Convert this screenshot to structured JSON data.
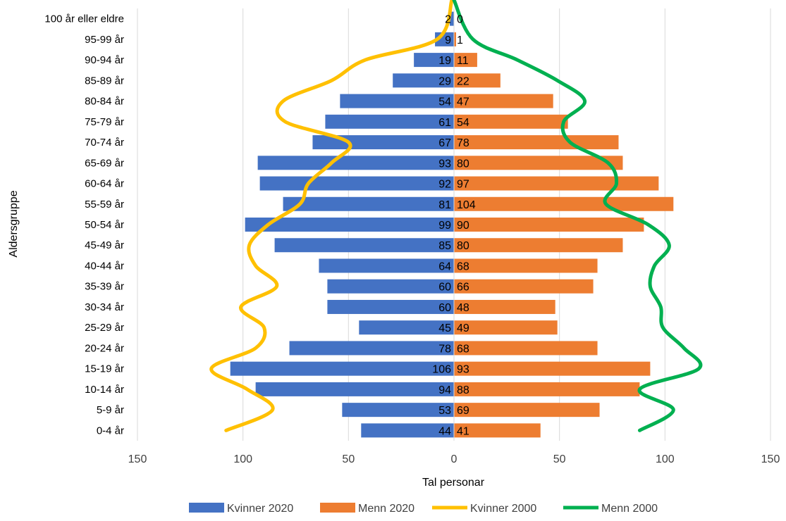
{
  "chart_data": {
    "type": "bar",
    "orientation": "horizontal",
    "xlabel": "Tal personar",
    "ylabel": "Aldersgruppe",
    "xlim": [
      -150,
      150
    ],
    "xticks": [
      -150,
      -100,
      -50,
      0,
      50,
      100,
      150
    ],
    "xtick_labels": [
      "150",
      "100",
      "50",
      "0",
      "50",
      "100",
      "150"
    ],
    "grid": "vertical",
    "legend_position": "bottom",
    "categories": [
      "100 år eller eldre",
      "95-99 år",
      "90-94 år",
      "85-89 år",
      "80-84 år",
      "75-79 år",
      "70-74 år",
      "65-69 år",
      "60-64 år",
      "55-59 år",
      "50-54 år",
      "45-49 år",
      "40-44 år",
      "35-39 år",
      "30-34 år",
      "25-29 år",
      "20-24 år",
      "15-19 år",
      "10-14 år",
      "5-9 år",
      "0-4 år"
    ],
    "series": [
      {
        "name": "Kvinner 2020",
        "kind": "bar",
        "side": "left",
        "color": "#4472C4",
        "values": [
          2,
          9,
          19,
          29,
          54,
          61,
          67,
          93,
          92,
          81,
          99,
          85,
          64,
          60,
          60,
          45,
          78,
          106,
          94,
          53,
          44
        ]
      },
      {
        "name": "Menn 2020",
        "kind": "bar",
        "side": "right",
        "color": "#ED7D31",
        "values": [
          0,
          1,
          11,
          22,
          47,
          54,
          78,
          80,
          97,
          104,
          90,
          80,
          68,
          66,
          48,
          49,
          68,
          93,
          88,
          69,
          41
        ]
      },
      {
        "name": "Kvinner 2000",
        "kind": "line",
        "side": "left",
        "color": "#FFC000",
        "values": [
          1,
          8,
          42,
          58,
          81,
          80,
          50,
          58,
          69,
          73,
          88,
          97,
          94,
          84,
          101,
          90,
          94,
          115,
          98,
          86,
          108
        ]
      },
      {
        "name": "Menn 2000",
        "kind": "line",
        "side": "right",
        "color": "#00B050",
        "values": [
          0,
          9,
          30,
          49,
          62,
          52,
          55,
          73,
          77,
          72,
          92,
          102,
          95,
          93,
          98,
          99,
          109,
          116,
          88,
          104,
          88
        ]
      }
    ]
  }
}
